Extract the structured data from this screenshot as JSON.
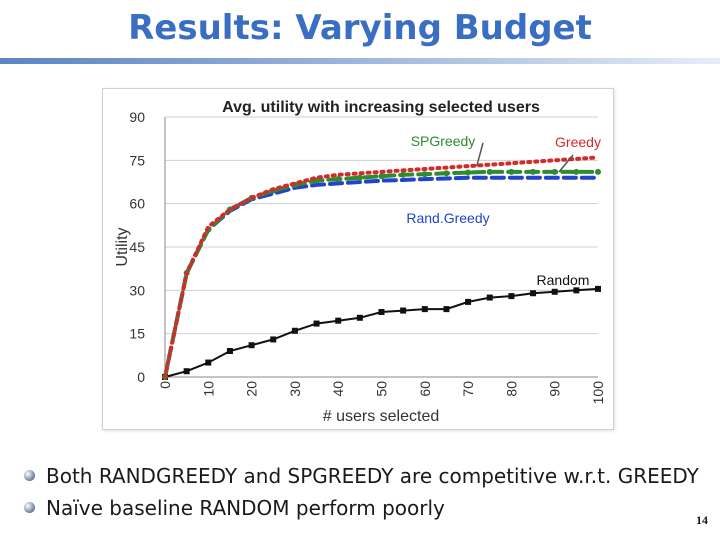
{
  "slide": {
    "title": "Results: Varying Budget",
    "bullets": [
      "Both RANDGREEDY and SPGREEDY are competitive w.r.t. GREEDY",
      "Naïve baseline RANDOM perform poorly"
    ],
    "page_number": "14"
  },
  "chart_data": {
    "type": "line",
    "title": "Avg. utility with increasing selected users",
    "xlabel": "# users selected",
    "ylabel": "Utility",
    "x": [
      0,
      5,
      10,
      15,
      20,
      25,
      30,
      35,
      40,
      45,
      50,
      55,
      60,
      65,
      70,
      75,
      80,
      85,
      90,
      95,
      100
    ],
    "xticks": [
      "0",
      "10",
      "20",
      "30",
      "40",
      "50",
      "60",
      "70",
      "80",
      "90",
      "100"
    ],
    "yticks": [
      "0",
      "15",
      "30",
      "45",
      "60",
      "75",
      "90"
    ],
    "ylim": [
      0,
      90
    ],
    "xlim": [
      0,
      100
    ],
    "grid": true,
    "series": [
      {
        "name": "Greedy",
        "color": "#d42a2a",
        "style": "dotted",
        "values": [
          0,
          36,
          52,
          58,
          62,
          65,
          67,
          69,
          70,
          70.5,
          71,
          71.5,
          72,
          72.5,
          73,
          73.5,
          74,
          74.5,
          75,
          75.5,
          76
        ]
      },
      {
        "name": "SPGreedy",
        "color": "#2e8b2e",
        "style": "dashed",
        "values": [
          0,
          36,
          51,
          58,
          62,
          64.5,
          66.5,
          68,
          68.5,
          69,
          69.5,
          70,
          70.2,
          70.5,
          70.8,
          71,
          71,
          71,
          71,
          71,
          71
        ]
      },
      {
        "name": "Rand.Greedy",
        "color": "#2244cc",
        "style": "dashed",
        "values": [
          0,
          36,
          51,
          57.5,
          61.5,
          63.5,
          65.5,
          66.5,
          67,
          67.5,
          68,
          68.2,
          68.5,
          68.7,
          69,
          69,
          69,
          69,
          69,
          69,
          69
        ]
      },
      {
        "name": "Random",
        "color": "#111111",
        "style": "solid",
        "values": [
          0,
          2,
          5,
          9,
          11,
          13,
          16,
          18.5,
          19.5,
          20.5,
          22.5,
          23,
          23.5,
          23.5,
          26,
          27.5,
          28,
          29,
          29.5,
          30,
          30.5
        ]
      }
    ]
  }
}
